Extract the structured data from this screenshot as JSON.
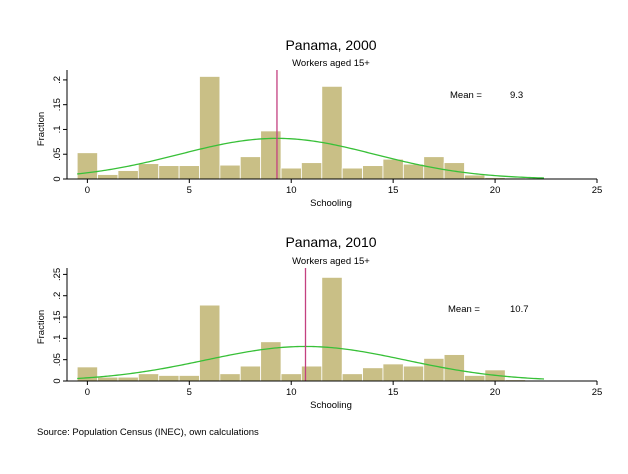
{
  "source_note": "Source: Population Census (INEC), own calculations",
  "chart_data": [
    {
      "type": "bar",
      "title": "Panama, 2000",
      "subtitle": "Workers aged 15+",
      "xlabel": "Schooling",
      "ylabel": "Fraction",
      "xlim": [
        -1,
        25
      ],
      "ylim": [
        0,
        0.22
      ],
      "xticks": [
        0,
        5,
        10,
        15,
        20,
        25
      ],
      "yticks": [
        0,
        0.05,
        0.1,
        0.15,
        0.2
      ],
      "ytick_labels": [
        "0",
        ".05",
        ".1",
        ".15",
        ".2"
      ],
      "x": [
        0,
        1,
        2,
        3,
        4,
        5,
        6,
        7,
        8,
        9,
        10,
        11,
        12,
        13,
        14,
        15,
        16,
        17,
        18,
        19,
        20,
        21,
        22
      ],
      "values": [
        0.053,
        0.009,
        0.017,
        0.031,
        0.027,
        0.027,
        0.207,
        0.028,
        0.045,
        0.097,
        0.022,
        0.033,
        0.187,
        0.022,
        0.027,
        0.04,
        0.03,
        0.045,
        0.033,
        0.008,
        0.003,
        0.002,
        0.001
      ],
      "mean_label": "Mean =",
      "mean_value": "9.3",
      "mean": 9.3,
      "curve": {
        "mean": 9.3,
        "sd": 4.8,
        "peak": 0.082
      },
      "colors": {
        "bar": "#c9bf86",
        "bar_edge": "#ffffff",
        "curve": "#38c038",
        "mean_line": "#c44080"
      }
    },
    {
      "type": "bar",
      "title": "Panama, 2010",
      "subtitle": "Workers aged 15+",
      "xlabel": "Schooling",
      "ylabel": "Fraction",
      "xlim": [
        -1,
        25
      ],
      "ylim": [
        0,
        0.265
      ],
      "xticks": [
        0,
        5,
        10,
        15,
        20,
        25
      ],
      "yticks": [
        0,
        0.05,
        0.1,
        0.15,
        0.2,
        0.25
      ],
      "ytick_labels": [
        "0",
        ".05",
        ".1",
        ".15",
        ".2",
        ".25"
      ],
      "x": [
        0,
        1,
        2,
        3,
        4,
        5,
        6,
        7,
        8,
        9,
        10,
        11,
        12,
        13,
        14,
        15,
        16,
        17,
        18,
        19,
        20,
        21,
        22
      ],
      "values": [
        0.033,
        0.009,
        0.009,
        0.017,
        0.013,
        0.013,
        0.178,
        0.017,
        0.035,
        0.092,
        0.017,
        0.035,
        0.243,
        0.017,
        0.031,
        0.04,
        0.035,
        0.053,
        0.062,
        0.013,
        0.026,
        0.003,
        0.002
      ],
      "mean_label": "Mean =",
      "mean_value": "10.7",
      "mean": 10.7,
      "curve": {
        "mean": 10.7,
        "sd": 4.9,
        "peak": 0.081
      },
      "colors": {
        "bar": "#c9bf86",
        "bar_edge": "#ffffff",
        "curve": "#38c038",
        "mean_line": "#c44080"
      }
    }
  ]
}
